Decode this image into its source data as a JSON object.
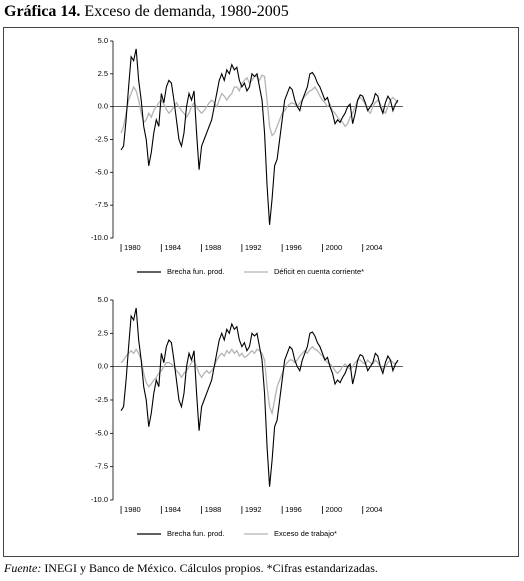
{
  "title_label": "Gráfica 14.",
  "title_text": "Exceso de demanda, 1980-2005",
  "source_label": "Fuente:",
  "source_text": "INEGI y Banco de México. Cálculos propios. *Cifras estandarizadas.",
  "chart_data": [
    {
      "type": "line",
      "x": [
        1980,
        1980.25,
        1980.5,
        1980.75,
        1981,
        1981.25,
        1981.5,
        1981.75,
        1982,
        1982.25,
        1982.5,
        1982.75,
        1983,
        1983.25,
        1983.5,
        1983.75,
        1984,
        1984.25,
        1984.5,
        1984.75,
        1985,
        1985.25,
        1985.5,
        1985.75,
        1986,
        1986.25,
        1986.5,
        1986.75,
        1987,
        1987.25,
        1987.5,
        1987.75,
        1988,
        1988.25,
        1988.5,
        1988.75,
        1989,
        1989.25,
        1989.5,
        1989.75,
        1990,
        1990.25,
        1990.5,
        1990.75,
        1991,
        1991.25,
        1991.5,
        1991.75,
        1992,
        1992.25,
        1992.5,
        1992.75,
        1993,
        1993.25,
        1993.5,
        1993.75,
        1994,
        1994.25,
        1994.5,
        1994.75,
        1995,
        1995.25,
        1995.5,
        1995.75,
        1996,
        1996.25,
        1996.5,
        1996.75,
        1997,
        1997.25,
        1997.5,
        1997.75,
        1998,
        1998.25,
        1998.5,
        1998.75,
        1999,
        1999.25,
        1999.5,
        1999.75,
        2000,
        2000.25,
        2000.5,
        2000.75,
        2001,
        2001.25,
        2001.5,
        2001.75,
        2002,
        2002.25,
        2002.5,
        2002.75,
        2003,
        2003.25,
        2003.5,
        2003.75,
        2004,
        2004.25,
        2004.5,
        2004.75,
        2005,
        2005.25,
        2005.5,
        2005.75,
        2006,
        2006.25,
        2006.5,
        2006.75,
        2007,
        2007.25,
        2007.5
      ],
      "series": [
        {
          "name": "Brecha fun. prod.",
          "color": "#000000",
          "values": [
            -3.3,
            -3.0,
            -1.0,
            1.5,
            3.8,
            3.5,
            4.4,
            2.0,
            0.5,
            -1.5,
            -2.5,
            -4.5,
            -3.5,
            -2.0,
            -1.0,
            -1.5,
            1.0,
            0.3,
            1.5,
            2.0,
            1.8,
            0.5,
            -1.0,
            -2.5,
            -3.0,
            -2.0,
            0.0,
            1.0,
            0.5,
            1.2,
            -2.0,
            -4.8,
            -3.0,
            -2.5,
            -2.0,
            -1.5,
            -1.0,
            0.0,
            1.0,
            2.0,
            2.5,
            2.0,
            2.8,
            2.5,
            3.2,
            2.8,
            3.0,
            2.0,
            1.5,
            1.8,
            1.2,
            1.5,
            2.5,
            2.3,
            2.5,
            1.5,
            0.5,
            -2.0,
            -6.0,
            -9.0,
            -7.0,
            -4.5,
            -4.0,
            -2.5,
            -1.0,
            0.5,
            1.0,
            1.5,
            1.3,
            0.5,
            0.0,
            -0.3,
            0.5,
            1.0,
            1.5,
            2.5,
            2.6,
            2.3,
            1.8,
            1.5,
            1.0,
            0.5,
            0.7,
            0.0,
            -0.5,
            -1.3,
            -1.0,
            -1.2,
            -0.8,
            -0.5,
            0.0,
            0.2,
            -1.3,
            -0.5,
            0.5,
            0.9,
            0.8,
            0.3,
            -0.3,
            0.0,
            0.3,
            1.0,
            0.8,
            0.0,
            -0.5,
            0.3,
            0.8,
            0.5,
            -0.3,
            0.2,
            0.5
          ]
        },
        {
          "name": "Déficit en cuenta corriente*",
          "color": "#b4b4b4",
          "values": [
            -2.0,
            -1.5,
            -0.5,
            0.5,
            1.0,
            1.5,
            1.2,
            0.5,
            -0.5,
            -1.2,
            -1.0,
            -0.5,
            -0.8,
            -0.3,
            0.0,
            0.3,
            0.5,
            0.2,
            -0.2,
            -0.5,
            -0.3,
            0.0,
            0.3,
            0.0,
            -0.3,
            -0.5,
            -0.8,
            -0.5,
            0.0,
            0.3,
            0.0,
            -0.3,
            -0.5,
            -0.3,
            0.0,
            0.3,
            0.5,
            0.3,
            0.0,
            0.5,
            1.0,
            0.8,
            0.5,
            0.8,
            1.0,
            1.5,
            1.5,
            1.2,
            1.8,
            2.0,
            2.2,
            1.8,
            2.0,
            2.3,
            2.3,
            2.0,
            2.4,
            2.3,
            0.5,
            -1.5,
            -2.2,
            -2.0,
            -1.5,
            -1.0,
            -0.5,
            -0.3,
            0.0,
            0.2,
            0.3,
            0.2,
            0.0,
            0.3,
            0.5,
            0.8,
            1.0,
            1.2,
            1.3,
            1.5,
            1.2,
            0.8,
            0.5,
            0.3,
            0.0,
            0.2,
            -0.3,
            -0.5,
            -0.8,
            -1.0,
            -1.2,
            -1.5,
            -1.3,
            -0.8,
            -0.5,
            0.0,
            0.5,
            0.7,
            0.5,
            0.2,
            -0.3,
            -0.5,
            0.0,
            0.3,
            0.5,
            0.2,
            -0.3,
            -0.5,
            0.0,
            0.5,
            0.7,
            0.5,
            0.3
          ]
        }
      ],
      "xlim": [
        1979.2,
        2008
      ],
      "xticks": [
        1980,
        1984,
        1988,
        1992,
        1996,
        2000,
        2004
      ],
      "ylim": [
        -10,
        5
      ],
      "yticks": [
        {
          "value": 5,
          "label": "5.0"
        },
        {
          "value": 2.5,
          "label": "2.5"
        },
        {
          "value": 0,
          "label": "0.0"
        },
        {
          "value": -2.5,
          "label": "-2.5"
        },
        {
          "value": -5,
          "label": "-5.0"
        },
        {
          "value": -7.5,
          "label": "-7.5"
        },
        {
          "value": -10,
          "label": "-10.0"
        }
      ],
      "legend": "bottom"
    },
    {
      "type": "line",
      "x": [
        1980,
        1980.25,
        1980.5,
        1980.75,
        1981,
        1981.25,
        1981.5,
        1981.75,
        1982,
        1982.25,
        1982.5,
        1982.75,
        1983,
        1983.25,
        1983.5,
        1983.75,
        1984,
        1984.25,
        1984.5,
        1984.75,
        1985,
        1985.25,
        1985.5,
        1985.75,
        1986,
        1986.25,
        1986.5,
        1986.75,
        1987,
        1987.25,
        1987.5,
        1987.75,
        1988,
        1988.25,
        1988.5,
        1988.75,
        1989,
        1989.25,
        1989.5,
        1989.75,
        1990,
        1990.25,
        1990.5,
        1990.75,
        1991,
        1991.25,
        1991.5,
        1991.75,
        1992,
        1992.25,
        1992.5,
        1992.75,
        1993,
        1993.25,
        1993.5,
        1993.75,
        1994,
        1994.25,
        1994.5,
        1994.75,
        1995,
        1995.25,
        1995.5,
        1995.75,
        1996,
        1996.25,
        1996.5,
        1996.75,
        1997,
        1997.25,
        1997.5,
        1997.75,
        1998,
        1998.25,
        1998.5,
        1998.75,
        1999,
        1999.25,
        1999.5,
        1999.75,
        2000,
        2000.25,
        2000.5,
        2000.75,
        2001,
        2001.25,
        2001.5,
        2001.75,
        2002,
        2002.25,
        2002.5,
        2002.75,
        2003,
        2003.25,
        2003.5,
        2003.75,
        2004,
        2004.25,
        2004.5,
        2004.75,
        2005,
        2005.25,
        2005.5,
        2005.75,
        2006,
        2006.25,
        2006.5,
        2006.75,
        2007,
        2007.25,
        2007.5
      ],
      "series": [
        {
          "name": "Brecha fun. prod.",
          "color": "#000000",
          "values": [
            -3.3,
            -3.0,
            -1.0,
            1.5,
            3.8,
            3.5,
            4.4,
            2.0,
            0.5,
            -1.5,
            -2.5,
            -4.5,
            -3.5,
            -2.0,
            -1.0,
            -1.5,
            1.0,
            0.3,
            1.5,
            2.0,
            1.8,
            0.5,
            -1.0,
            -2.5,
            -3.0,
            -2.0,
            0.0,
            1.0,
            0.5,
            1.2,
            -2.0,
            -4.8,
            -3.0,
            -2.5,
            -2.0,
            -1.5,
            -1.0,
            0.0,
            1.0,
            2.0,
            2.5,
            2.0,
            2.8,
            2.5,
            3.2,
            2.8,
            3.0,
            2.0,
            1.5,
            1.8,
            1.2,
            1.5,
            2.5,
            2.3,
            2.5,
            1.5,
            0.5,
            -2.0,
            -6.0,
            -9.0,
            -7.0,
            -4.5,
            -4.0,
            -2.5,
            -1.0,
            0.5,
            1.0,
            1.5,
            1.3,
            0.5,
            0.0,
            -0.3,
            0.5,
            1.0,
            1.5,
            2.5,
            2.6,
            2.3,
            1.8,
            1.5,
            1.0,
            0.5,
            0.7,
            0.0,
            -0.5,
            -1.3,
            -1.0,
            -1.2,
            -0.8,
            -0.5,
            0.0,
            0.2,
            -1.3,
            -0.5,
            0.5,
            0.9,
            0.8,
            0.3,
            -0.3,
            0.0,
            0.3,
            1.0,
            0.8,
            0.0,
            -0.5,
            0.3,
            0.8,
            0.5,
            -0.3,
            0.2,
            0.5
          ]
        },
        {
          "name": "Exceso de trabajo*",
          "color": "#b4b4b4",
          "values": [
            0.3,
            0.5,
            0.8,
            1.0,
            1.2,
            1.0,
            1.3,
            1.0,
            0.5,
            -0.5,
            -1.2,
            -1.5,
            -1.3,
            -1.0,
            -0.8,
            -0.5,
            -0.3,
            0.0,
            0.3,
            0.3,
            0.2,
            0.0,
            -0.3,
            -0.5,
            -0.8,
            -0.5,
            -0.3,
            0.0,
            0.3,
            0.5,
            0.0,
            -0.5,
            -0.8,
            -0.5,
            -0.3,
            -0.5,
            -0.3,
            0.0,
            0.5,
            0.8,
            1.0,
            0.8,
            1.2,
            1.0,
            1.3,
            1.0,
            1.2,
            0.8,
            1.0,
            0.7,
            0.8,
            1.0,
            1.2,
            1.0,
            1.3,
            1.2,
            1.0,
            0.5,
            -1.5,
            -3.0,
            -3.5,
            -2.5,
            -1.5,
            -1.0,
            -0.5,
            0.0,
            0.3,
            0.5,
            0.5,
            0.3,
            0.5,
            0.8,
            1.0,
            1.2,
            1.0,
            1.3,
            1.5,
            1.3,
            1.2,
            1.0,
            0.8,
            0.5,
            0.3,
            0.2,
            0.0,
            -0.3,
            -0.5,
            -0.3,
            0.0,
            0.2,
            0.0,
            -0.2,
            0.0,
            0.3,
            0.5,
            0.5,
            0.3,
            0.2,
            0.5,
            0.3,
            0.2,
            0.5,
            0.3,
            0.0,
            -0.2,
            0.0,
            0.3,
            0.5,
            0.3,
            0.2,
            0.4
          ]
        }
      ],
      "xlim": [
        1979.2,
        2008
      ],
      "xticks": [
        1980,
        1984,
        1988,
        1992,
        1996,
        2000,
        2004
      ],
      "ylim": [
        -10,
        5
      ],
      "yticks": [
        {
          "value": 5,
          "label": "5.0"
        },
        {
          "value": 2.5,
          "label": "2.5"
        },
        {
          "value": 0,
          "label": "0.0"
        },
        {
          "value": -2.5,
          "label": "-2.5"
        },
        {
          "value": -5,
          "label": "-5.0"
        },
        {
          "value": -7.5,
          "label": "-7.5"
        },
        {
          "value": -10,
          "label": "-10.0"
        }
      ],
      "legend": "bottom"
    }
  ]
}
